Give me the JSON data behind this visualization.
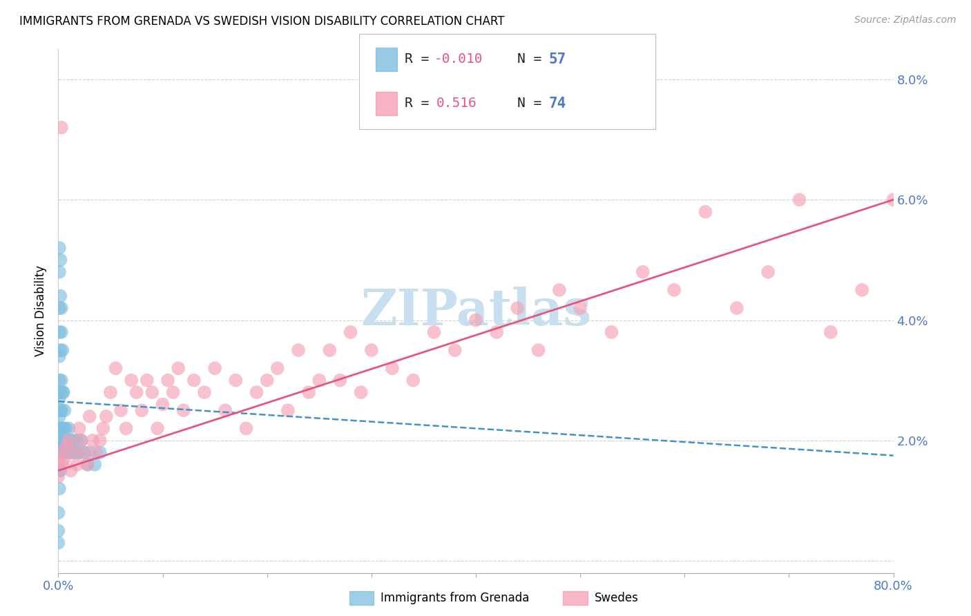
{
  "title": "IMMIGRANTS FROM GRENADA VS SWEDISH VISION DISABILITY CORRELATION CHART",
  "source": "Source: ZipAtlas.com",
  "ylabel": "Vision Disability",
  "yticks": [
    0.0,
    0.02,
    0.04,
    0.06,
    0.08
  ],
  "ytick_labels": [
    "",
    "2.0%",
    "4.0%",
    "6.0%",
    "8.0%"
  ],
  "xticks": [
    0.0,
    0.1,
    0.2,
    0.3,
    0.4,
    0.5,
    0.6,
    0.7,
    0.8
  ],
  "xlim": [
    0.0,
    0.8
  ],
  "ylim": [
    -0.002,
    0.085
  ],
  "legend_r1_label": "R = -0.010",
  "legend_n1_label": "N = 57",
  "legend_r2_label": "R =  0.516",
  "legend_n2_label": "N = 74",
  "color_blue": "#7fbfdf",
  "color_pink": "#f4a0b5",
  "color_blue_dark": "#4292c6",
  "color_pink_line": "#e75480",
  "color_axis_right": "#4e79c4",
  "watermark_text": "ZIPatlas",
  "watermark_color": "#c8dff0",
  "blue_line_y0": 0.0265,
  "blue_line_y1": 0.0175,
  "pink_line_y0": 0.015,
  "pink_line_y1": 0.06,
  "blue_scatter_x": [
    0.0,
    0.0,
    0.0,
    0.001,
    0.001,
    0.001,
    0.001,
    0.001,
    0.001,
    0.001,
    0.001,
    0.001,
    0.001,
    0.001,
    0.001,
    0.001,
    0.002,
    0.002,
    0.002,
    0.002,
    0.002,
    0.002,
    0.002,
    0.002,
    0.002,
    0.003,
    0.003,
    0.003,
    0.003,
    0.003,
    0.003,
    0.003,
    0.004,
    0.004,
    0.004,
    0.004,
    0.005,
    0.005,
    0.006,
    0.006,
    0.007,
    0.008,
    0.009,
    0.01,
    0.011,
    0.012,
    0.014,
    0.015,
    0.017,
    0.018,
    0.02,
    0.022,
    0.025,
    0.028,
    0.03,
    0.035,
    0.04
  ],
  "blue_scatter_y": [
    0.008,
    0.005,
    0.003,
    0.052,
    0.048,
    0.042,
    0.038,
    0.034,
    0.03,
    0.027,
    0.024,
    0.022,
    0.02,
    0.018,
    0.015,
    0.012,
    0.05,
    0.044,
    0.035,
    0.028,
    0.025,
    0.022,
    0.02,
    0.018,
    0.015,
    0.042,
    0.038,
    0.03,
    0.025,
    0.022,
    0.02,
    0.018,
    0.035,
    0.028,
    0.022,
    0.018,
    0.028,
    0.022,
    0.025,
    0.02,
    0.022,
    0.02,
    0.018,
    0.022,
    0.02,
    0.018,
    0.02,
    0.018,
    0.018,
    0.02,
    0.018,
    0.02,
    0.018,
    0.016,
    0.018,
    0.016,
    0.018
  ],
  "pink_scatter_x": [
    0.0,
    0.001,
    0.002,
    0.004,
    0.006,
    0.008,
    0.01,
    0.012,
    0.015,
    0.018,
    0.02,
    0.022,
    0.025,
    0.028,
    0.03,
    0.033,
    0.036,
    0.04,
    0.043,
    0.046,
    0.05,
    0.055,
    0.06,
    0.065,
    0.07,
    0.075,
    0.08,
    0.085,
    0.09,
    0.095,
    0.1,
    0.105,
    0.11,
    0.115,
    0.12,
    0.13,
    0.14,
    0.15,
    0.16,
    0.17,
    0.18,
    0.19,
    0.2,
    0.21,
    0.22,
    0.23,
    0.24,
    0.25,
    0.26,
    0.27,
    0.28,
    0.29,
    0.3,
    0.32,
    0.34,
    0.36,
    0.38,
    0.4,
    0.42,
    0.44,
    0.46,
    0.48,
    0.5,
    0.53,
    0.56,
    0.59,
    0.62,
    0.65,
    0.68,
    0.71,
    0.74,
    0.77,
    0.8,
    0.003
  ],
  "pink_scatter_y": [
    0.014,
    0.016,
    0.018,
    0.016,
    0.017,
    0.019,
    0.02,
    0.015,
    0.018,
    0.016,
    0.022,
    0.02,
    0.018,
    0.016,
    0.024,
    0.02,
    0.018,
    0.02,
    0.022,
    0.024,
    0.028,
    0.032,
    0.025,
    0.022,
    0.03,
    0.028,
    0.025,
    0.03,
    0.028,
    0.022,
    0.026,
    0.03,
    0.028,
    0.032,
    0.025,
    0.03,
    0.028,
    0.032,
    0.025,
    0.03,
    0.022,
    0.028,
    0.03,
    0.032,
    0.025,
    0.035,
    0.028,
    0.03,
    0.035,
    0.03,
    0.038,
    0.028,
    0.035,
    0.032,
    0.03,
    0.038,
    0.035,
    0.04,
    0.038,
    0.042,
    0.035,
    0.045,
    0.042,
    0.038,
    0.048,
    0.045,
    0.058,
    0.042,
    0.048,
    0.06,
    0.038,
    0.045,
    0.06,
    0.072
  ]
}
